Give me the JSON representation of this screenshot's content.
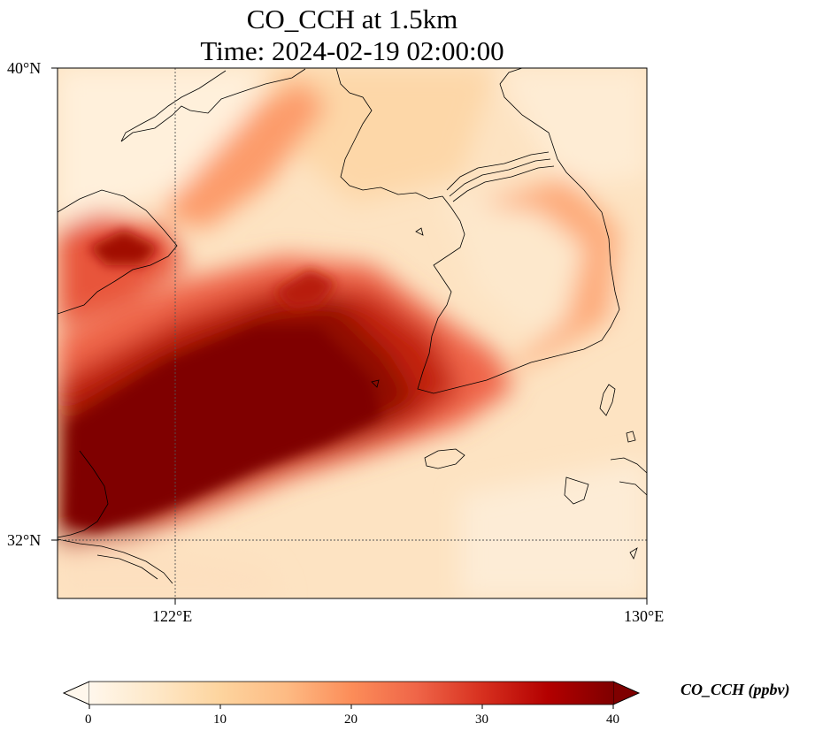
{
  "title": {
    "line1": "CO_CCH at 1.5km",
    "line2": "Time: 2024-02-19 02:00:00"
  },
  "axes": {
    "lat_ticks": [
      "40°N",
      "32°N"
    ],
    "lon_ticks": [
      "122°E",
      "130°E"
    ],
    "extent": {
      "lon": [
        120,
        130
      ],
      "lat": [
        31,
        40
      ]
    },
    "gridlines": "dotted at 122°E and 32°N"
  },
  "colorbar": {
    "label": "CO_CCH (ppbv)",
    "ticks": [
      "0",
      "10",
      "20",
      "30",
      "40"
    ],
    "range": [
      0,
      40
    ],
    "extend": "both",
    "colormap": "OrRd",
    "colors": [
      "#fff7ec",
      "#fee8c8",
      "#fdd49e",
      "#fdbb84",
      "#fc8d59",
      "#ef6548",
      "#d7301f",
      "#b30000",
      "#7f0000"
    ]
  },
  "plume_description_keys": {
    "max_region": "southwest quadrant over Yellow Sea",
    "background": "light orange"
  }
}
